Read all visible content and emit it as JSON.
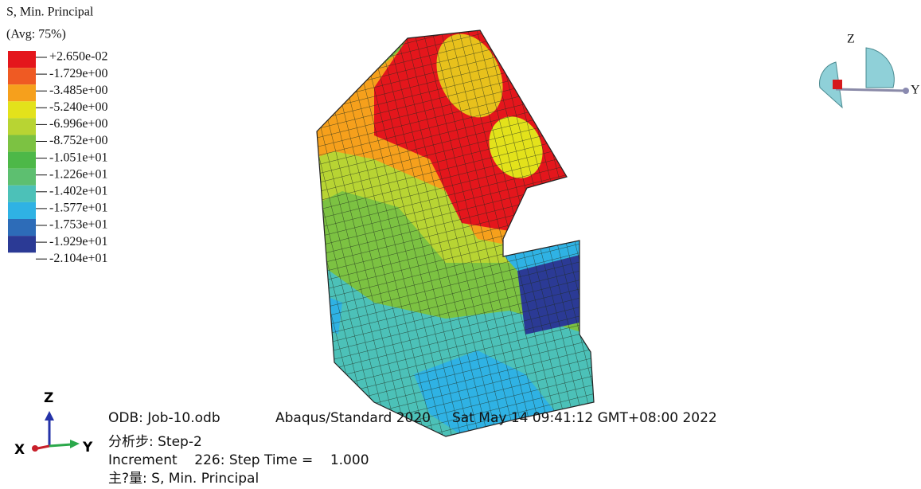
{
  "legend": {
    "title": [
      "S, Min. Principal",
      "(Avg: 75%)"
    ],
    "labels": [
      "+2.650e-02",
      "-1.729e+00",
      "-3.485e+00",
      "-5.240e+00",
      "-6.996e+00",
      "-8.752e+00",
      "-1.051e+01",
      "-1.226e+01",
      "-1.402e+01",
      "-1.577e+01",
      "-1.753e+01",
      "-1.929e+01",
      "-2.104e+01"
    ],
    "colors": [
      "#e4161c",
      "#ef5a23",
      "#f6a01c",
      "#e3e21b",
      "#b8d433",
      "#7cc242",
      "#4db848",
      "#5dbf70",
      "#4cc1b8",
      "#2fb2e4",
      "#2d6cb8",
      "#2b3a95"
    ]
  },
  "info": {
    "odb": "ODB: Job-10.odb",
    "solver": "Abaqus/Standard 2020",
    "date": "Sat May 14 09:41:12 GMT+08:00 2022",
    "step": "分析步: Step-2",
    "increment": "Increment    226: Step Time =    1.000",
    "variable": "主?量: S, Min. Principal"
  },
  "triad": {
    "z": "Z",
    "x": "X",
    "y": "Y"
  },
  "view_cube": {
    "z": "Z",
    "y": "Y"
  }
}
